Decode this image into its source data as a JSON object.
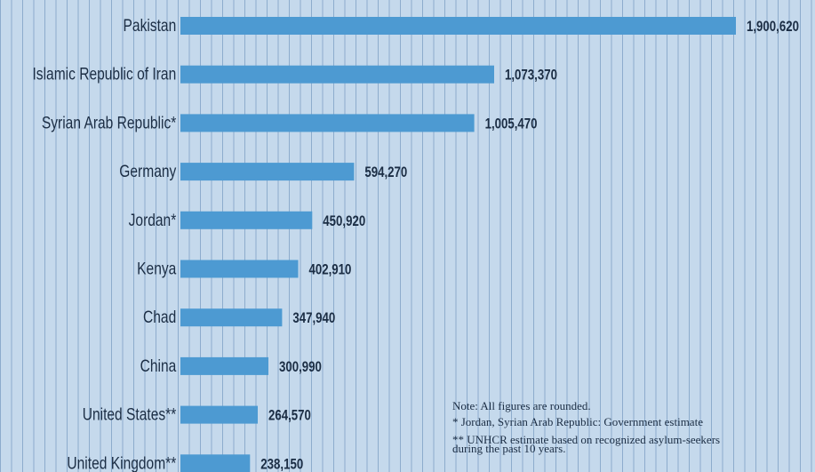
{
  "chart_data": {
    "type": "bar",
    "orientation": "horizontal",
    "categories": [
      "Pakistan",
      "Islamic Republic of Iran",
      "Syrian Arab Republic*",
      "Germany",
      "Jordan*",
      "Kenya",
      "Chad",
      "China",
      "United States**",
      "United Kingdom**"
    ],
    "values": [
      1900620,
      1073370,
      1005470,
      594270,
      450920,
      402910,
      347940,
      300990,
      264570,
      238150
    ],
    "value_labels": [
      "1,900,620",
      "1,073,370",
      "1,005,470",
      "594,270",
      "450,920",
      "402,910",
      "347,940",
      "300,990",
      "264,570",
      "238,150"
    ],
    "xlim": [
      0,
      1900620
    ],
    "grid": true,
    "colors": {
      "bar": "#4d9ad2",
      "background": "#c5d9ec",
      "text": "#1b2d44"
    },
    "notes": {
      "rounded": "Note: All figures are rounded.",
      "gov_estimate": "* Jordan, Syrian Arab Republic: Government estimate",
      "unhcr_estimate": "** UNHCR estimate based on recognized asylum-seekers during the past 10 years."
    }
  }
}
